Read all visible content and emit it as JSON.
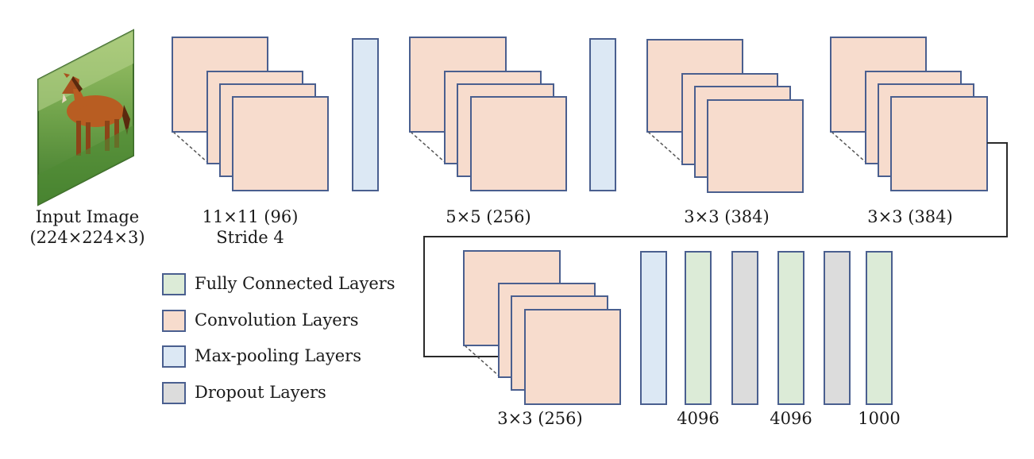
{
  "colors": {
    "convolution": "#f7dccd",
    "max_pooling": "#dce8f4",
    "fully_connected": "#dcebd7",
    "dropout": "#dcdcdc",
    "border": "#4a5f8f",
    "connector": "#2a2a2a"
  },
  "input": {
    "label_line1": "Input Image",
    "label_line2": "(224×224×3)",
    "image_subject": "horse in grassy field"
  },
  "layers": {
    "conv1_label_line1": "11×11 (96)",
    "conv1_label_line2": "Stride 4",
    "conv2_label": "5×5 (256)",
    "conv3_label": "3×3 (384)",
    "conv4_label": "3×3 (384)",
    "conv5_label": "3×3 (256)",
    "fc1_label": "4096",
    "fc2_label": "4096",
    "fc3_label": "1000"
  },
  "legend": {
    "fully_connected": "Fully Connected Layers",
    "convolution": "Convolution Layers",
    "max_pooling": "Max-pooling Layers",
    "dropout": "Dropout Layers"
  }
}
